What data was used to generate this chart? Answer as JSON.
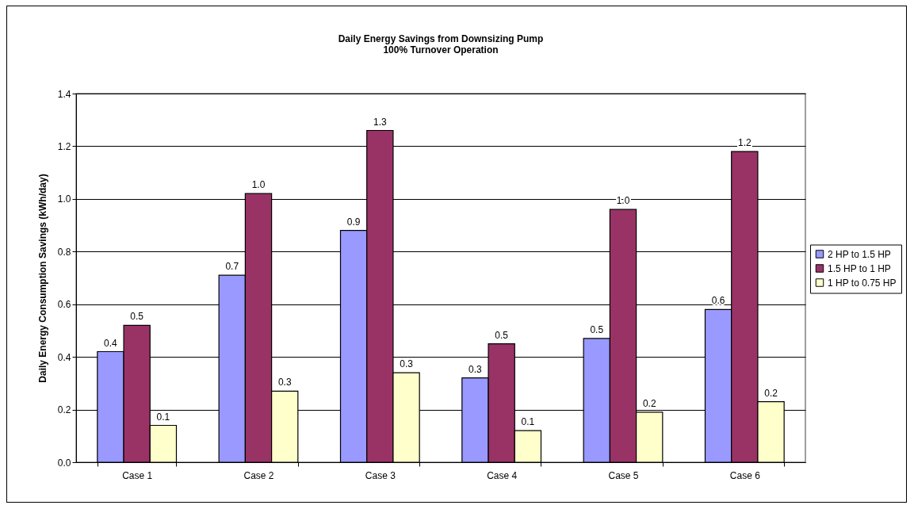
{
  "chart_data": {
    "type": "bar",
    "title": "Daily Energy Savings from Downsizing Pump",
    "subtitle": "100% Turnover Operation",
    "ylabel": "Daily Energy Consumption Savings  (kWh/day)",
    "categories": [
      "Case 1",
      "Case 2",
      "Case 3",
      "Case 4",
      "Case 5",
      "Case 6"
    ],
    "series": [
      {
        "name": "2 HP to 1.5 HP",
        "color": "#9999ff",
        "values": [
          0.42,
          0.71,
          0.88,
          0.32,
          0.47,
          0.58
        ],
        "value_labels": [
          "0.4",
          "0.7",
          "0.9",
          "0.3",
          "0.5",
          "0.6"
        ]
      },
      {
        "name": "1.5 HP to 1 HP",
        "color": "#993366",
        "values": [
          0.52,
          1.02,
          1.26,
          0.45,
          0.96,
          1.18
        ],
        "value_labels": [
          "0.5",
          "1.0",
          "1.3",
          "0.5",
          "1.0",
          "1.2"
        ]
      },
      {
        "name": "1 HP to 0.75 HP",
        "color": "#ffffcc",
        "values": [
          0.14,
          0.27,
          0.34,
          0.12,
          0.19,
          0.23
        ],
        "value_labels": [
          "0.1",
          "0.3",
          "0.3",
          "0.1",
          "0.2",
          "0.2"
        ]
      }
    ],
    "ylim": [
      0,
      1.4
    ],
    "yticks": [
      {
        "value": 0,
        "label": "0.0"
      },
      {
        "value": 0.2,
        "label": "0.2"
      },
      {
        "value": 0.4,
        "label": "0.4"
      },
      {
        "value": 0.6,
        "label": "0.6"
      },
      {
        "value": 0.8,
        "label": "0.8"
      },
      {
        "value": 1,
        "label": "1.0"
      },
      {
        "value": 1.2,
        "label": "1.2"
      },
      {
        "value": 1.4,
        "label": "1.4"
      }
    ],
    "grid": "y",
    "legend": "right"
  }
}
